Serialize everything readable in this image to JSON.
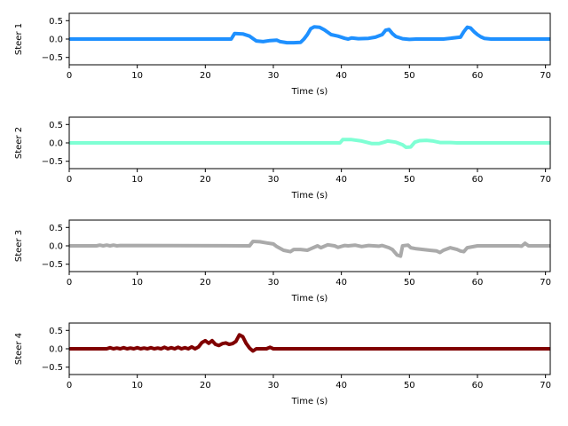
{
  "chart_data": [
    {
      "type": "line",
      "ylabel": "Steer 1",
      "xlabel": "Time (s)",
      "xlim": [
        0,
        70.7
      ],
      "ylim": [
        -0.7,
        0.7
      ],
      "xticks": [
        0,
        10,
        20,
        30,
        40,
        50,
        60,
        70
      ],
      "yticks": [
        0.5,
        0.0,
        -0.5
      ],
      "ytick_labels": [
        "0.5",
        "0.0",
        "−0.5"
      ],
      "grid": false,
      "color": "#1e90ff",
      "series": [
        {
          "x": [
            0,
            23.8,
            24.3,
            25.5,
            26.5,
            27.5,
            28.5,
            29.5,
            30.5,
            31,
            32,
            33,
            34,
            34.5,
            35,
            35.5,
            36,
            36.8,
            37.5,
            38.5,
            39.5,
            40.5,
            41,
            41.5,
            42.5,
            44,
            45,
            46,
            46.5,
            47,
            47.5,
            48,
            49,
            50,
            51,
            53,
            55,
            57,
            57.5,
            58,
            58.5,
            59,
            59.5,
            60,
            60.5,
            61,
            62,
            65,
            70.7
          ],
          "y": [
            0,
            0,
            0.15,
            0.14,
            0.08,
            -0.05,
            -0.07,
            -0.04,
            -0.03,
            -0.07,
            -0.1,
            -0.1,
            -0.09,
            0,
            0.12,
            0.28,
            0.33,
            0.32,
            0.25,
            0.12,
            0.08,
            0.02,
            0,
            0.03,
            0.01,
            0.02,
            0.05,
            0.12,
            0.24,
            0.26,
            0.15,
            0.07,
            0.01,
            -0.01,
            0,
            0,
            0,
            0.04,
            0.05,
            0.2,
            0.32,
            0.3,
            0.2,
            0.12,
            0.06,
            0.02,
            0,
            0,
            0
          ]
        }
      ]
    },
    {
      "type": "line",
      "ylabel": "Steer 2",
      "xlabel": "Time (s)",
      "xlim": [
        0,
        70.7
      ],
      "ylim": [
        -0.7,
        0.7
      ],
      "xticks": [
        0,
        10,
        20,
        30,
        40,
        50,
        60,
        70
      ],
      "yticks": [
        0.5,
        0.0,
        -0.5
      ],
      "ytick_labels": [
        "0.5",
        "0.0",
        "−0.5"
      ],
      "grid": false,
      "color": "#7fffd4",
      "series": [
        {
          "x": [
            0,
            39.8,
            40.2,
            41.5,
            43,
            44.5,
            45.5,
            46.3,
            46.8,
            48,
            49,
            49.5,
            50.2,
            50.8,
            51.5,
            52.5,
            53.5,
            54.5,
            55,
            56,
            57,
            58,
            70.7
          ],
          "y": [
            0,
            0,
            0.09,
            0.09,
            0.05,
            -0.02,
            -0.02,
            0.02,
            0.05,
            0.02,
            -0.05,
            -0.12,
            -0.11,
            0.02,
            0.06,
            0.07,
            0.05,
            0.01,
            0.01,
            0.01,
            0,
            0,
            0
          ]
        }
      ]
    },
    {
      "type": "line",
      "ylabel": "Steer 3",
      "xlabel": "Time (s)",
      "xlim": [
        0,
        70.7
      ],
      "ylim": [
        -0.7,
        0.7
      ],
      "xticks": [
        0,
        10,
        20,
        30,
        40,
        50,
        60,
        70
      ],
      "yticks": [
        0.5,
        0.0,
        -0.5
      ],
      "ytick_labels": [
        "0.5",
        "0.0",
        "−0.5"
      ],
      "grid": false,
      "color": "#aaaaaa",
      "series": [
        {
          "x": [
            0,
            4,
            4.5,
            5,
            5.5,
            6,
            6.5,
            7,
            7.5,
            26.5,
            27,
            28,
            29,
            30,
            30.5,
            31.5,
            32.5,
            33,
            34,
            35,
            35.5,
            36.5,
            37,
            38,
            39,
            39.5,
            40.5,
            41,
            42,
            43,
            44,
            45.5,
            46,
            47,
            47.5,
            48.2,
            48.7,
            49,
            49.8,
            50.2,
            51,
            52,
            53,
            54,
            54.5,
            55,
            56,
            57,
            57.5,
            58,
            58.5,
            60,
            62,
            64,
            66,
            66.5,
            67,
            67.5,
            68,
            70.7
          ],
          "y": [
            0,
            0,
            0.02,
            0,
            0.02,
            0,
            0.02,
            0,
            0.01,
            0,
            0.12,
            0.11,
            0.08,
            0.05,
            -0.02,
            -0.12,
            -0.16,
            -0.1,
            -0.1,
            -0.12,
            -0.08,
            0,
            -0.05,
            0.03,
            0,
            -0.04,
            0.01,
            0,
            0.02,
            -0.02,
            0.01,
            -0.01,
            0.01,
            -0.05,
            -0.1,
            -0.25,
            -0.28,
            0,
            0.02,
            -0.05,
            -0.08,
            -0.1,
            -0.12,
            -0.14,
            -0.18,
            -0.12,
            -0.05,
            -0.1,
            -0.14,
            -0.16,
            -0.05,
            0,
            0,
            0,
            0,
            -0.01,
            0.07,
            0,
            0,
            0
          ]
        }
      ]
    },
    {
      "type": "line",
      "ylabel": "Steer 4",
      "xlabel": "Time (s)",
      "xlim": [
        0,
        70.7
      ],
      "ylim": [
        -0.7,
        0.7
      ],
      "xticks": [
        0,
        10,
        20,
        30,
        40,
        50,
        60,
        70
      ],
      "yticks": [
        0.5,
        0.0,
        -0.5
      ],
      "ytick_labels": [
        "0.5",
        "0.0",
        "−0.5"
      ],
      "grid": false,
      "color": "#800000",
      "series": [
        {
          "x": [
            0,
            5.5,
            6,
            6.5,
            7,
            7.5,
            8,
            8.5,
            9,
            9.5,
            10,
            10.5,
            11,
            11.5,
            12,
            12.5,
            13,
            13.5,
            14,
            14.5,
            15,
            15.5,
            16,
            16.5,
            17,
            17.5,
            18,
            18.5,
            19,
            19.5,
            20,
            20.5,
            21,
            21.5,
            22,
            22.5,
            23,
            23.5,
            24,
            24.5,
            25,
            25.5,
            26,
            26.5,
            27,
            27.5,
            28,
            29,
            29.5,
            30,
            70.7
          ],
          "y": [
            0,
            0,
            0.03,
            0,
            0.02,
            0,
            0.03,
            0,
            0.02,
            0,
            0.03,
            0,
            0.02,
            0,
            0.03,
            0,
            0.02,
            0,
            0.04,
            0,
            0.03,
            0,
            0.04,
            0,
            0.03,
            0,
            0.05,
            0,
            0.05,
            0.17,
            0.22,
            0.15,
            0.22,
            0.12,
            0.09,
            0.14,
            0.16,
            0.12,
            0.14,
            0.2,
            0.38,
            0.33,
            0.15,
            0.02,
            -0.06,
            0,
            0,
            0,
            0.04,
            0,
            0
          ]
        }
      ]
    }
  ]
}
